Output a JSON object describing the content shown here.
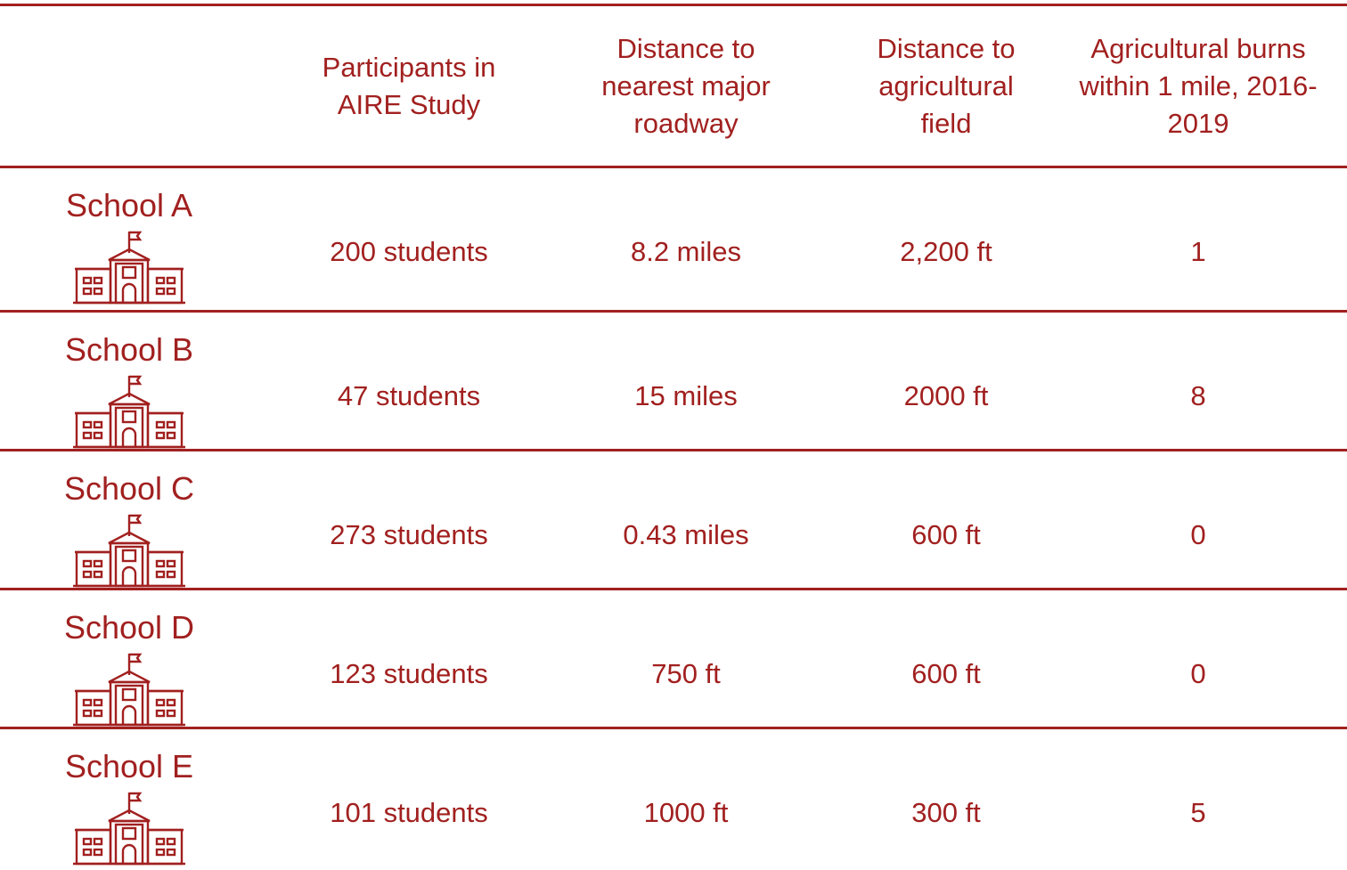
{
  "table": {
    "columns": [
      "Participants in AIRE Study",
      "Distance to nearest major roadway",
      "Distance to agricultural field",
      "Agricultural burns within 1 mile, 2016-2019"
    ],
    "rows": [
      {
        "school": "School A",
        "cells": [
          "200 students",
          "8.2 miles",
          "2,200 ft",
          "1"
        ]
      },
      {
        "school": "School B",
        "cells": [
          "47 students",
          "15 miles",
          "2000 ft",
          "8"
        ]
      },
      {
        "school": "School C",
        "cells": [
          "273 students",
          "0.43 miles",
          "600 ft",
          "0"
        ]
      },
      {
        "school": "School D",
        "cells": [
          "123 students",
          "750 ft",
          "600 ft",
          "0"
        ]
      },
      {
        "school": "School E",
        "cells": [
          "101 students",
          "1000 ft",
          "300 ft",
          "5"
        ]
      }
    ]
  }
}
